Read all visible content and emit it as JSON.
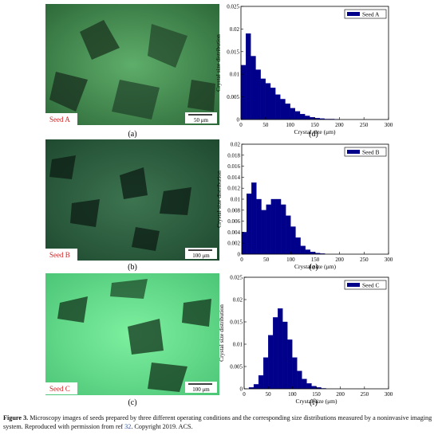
{
  "panels": [
    "(a)",
    "(b)",
    "(c)",
    "(d)",
    "(e)",
    "(f)"
  ],
  "images": [
    {
      "label": "Seed A",
      "scale": "50 μm"
    },
    {
      "label": "Seed B",
      "scale": "100 μm"
    },
    {
      "label": "Seed C",
      "scale": "100 μm"
    }
  ],
  "chart_data": [
    {
      "type": "histogram",
      "xlabel": "Crystal size (μm)",
      "ylabel": "Crystal size distribution",
      "bins": [
        0,
        10,
        20,
        30,
        40,
        50,
        60,
        70,
        80,
        90,
        100,
        110,
        120,
        130,
        140,
        150,
        160,
        170,
        180,
        190,
        200
      ],
      "series": [
        {
          "name": "Seed A",
          "color": "#00008b",
          "values": [
            0.012,
            0.019,
            0.014,
            0.011,
            0.009,
            0.008,
            0.007,
            0.0055,
            0.0045,
            0.0035,
            0.0025,
            0.0018,
            0.0012,
            0.0008,
            0.0005,
            0.0003,
            0.0002,
            0.0001,
            0.0001,
            5e-05
          ]
        }
      ],
      "xlim": [
        0,
        300
      ],
      "xticks": [
        0,
        50,
        100,
        150,
        200,
        250,
        300
      ],
      "ylim": [
        0,
        0.025
      ],
      "yticks": [
        0,
        0.005,
        0.01,
        0.015,
        0.02,
        0.025
      ],
      "legend": "top-right"
    },
    {
      "type": "histogram",
      "xlabel": "Crystal size (μm)",
      "ylabel": "Crystal size distribution",
      "bins": [
        0,
        10,
        20,
        30,
        40,
        50,
        60,
        70,
        80,
        90,
        100,
        110,
        120,
        130,
        140,
        150,
        160,
        170,
        180,
        190,
        200
      ],
      "series": [
        {
          "name": "Seed B",
          "color": "#00008b",
          "values": [
            0.004,
            0.011,
            0.013,
            0.01,
            0.008,
            0.009,
            0.01,
            0.01,
            0.009,
            0.007,
            0.005,
            0.003,
            0.0015,
            0.0008,
            0.0004,
            0.0002,
            0.0001,
            0,
            0,
            0
          ]
        }
      ],
      "xlim": [
        0,
        300
      ],
      "xticks": [
        0,
        50,
        100,
        150,
        200,
        250,
        300
      ],
      "ylim": [
        0,
        0.02
      ],
      "yticks": [
        0,
        0.002,
        0.004,
        0.006,
        0.008,
        0.01,
        0.012,
        0.014,
        0.016,
        0.018,
        0.02
      ],
      "legend": "top-right"
    },
    {
      "type": "histogram",
      "xlabel": "Crystal size (μm)",
      "ylabel": "Crystal size distribution",
      "bins": [
        0,
        10,
        20,
        30,
        40,
        50,
        60,
        70,
        80,
        90,
        100,
        110,
        120,
        130,
        140,
        150,
        160,
        170,
        180,
        190,
        200
      ],
      "series": [
        {
          "name": "Seed C",
          "color": "#00008b",
          "values": [
            0,
            0.0003,
            0.001,
            0.003,
            0.007,
            0.012,
            0.016,
            0.018,
            0.015,
            0.011,
            0.007,
            0.004,
            0.0022,
            0.0012,
            0.0006,
            0.0003,
            0.0001,
            0,
            0,
            0
          ]
        }
      ],
      "xlim": [
        0,
        300
      ],
      "xticks": [
        0,
        50,
        100,
        150,
        200,
        250,
        300
      ],
      "ylim": [
        0,
        0.025
      ],
      "yticks": [
        0,
        0.005,
        0.01,
        0.015,
        0.02,
        0.025
      ],
      "legend": "top-right"
    }
  ],
  "caption": {
    "label": "Figure 3.",
    "text": "Microscopy images of seeds prepared by three different operating conditions and the corresponding size distributions measured by a noninvasive imaging system. Reproduced with permission from ref",
    "ref": "32",
    "end": ". Copyright 2019. ACS."
  }
}
